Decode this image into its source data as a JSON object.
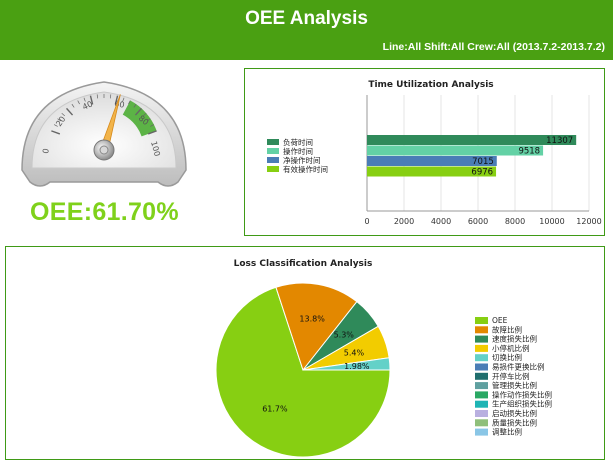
{
  "header": {
    "title": "OEE Analysis",
    "subtitle": "Line:All Shift:All Crew:All (2013.7.2-2013.7.2)"
  },
  "gauge": {
    "value": 61.7,
    "min": 0,
    "max": 100,
    "ticks": [
      "0",
      "20",
      "40",
      "60",
      "80",
      "100"
    ],
    "label": "OEE:61.70%"
  },
  "chart_data": [
    {
      "type": "bar",
      "orientation": "horizontal",
      "title": "Time Utilization Analysis",
      "categories": [
        "负荷时间",
        "操作时间",
        "净操作时间",
        "有效操作时间"
      ],
      "values": [
        11307,
        9518,
        7015,
        6976
      ],
      "colors": [
        "#2f8a5a",
        "#63d1a5",
        "#4a7db6",
        "#87cf12"
      ],
      "xlim": [
        0,
        12000
      ],
      "xticks": [
        "0",
        "2000",
        "4000",
        "6000",
        "8000",
        "10000",
        "12000"
      ],
      "legend": "left",
      "grid": true
    },
    {
      "type": "pie",
      "title": "Loss Classification Analysis",
      "slices": [
        {
          "name": "OEE",
          "value": 61.7,
          "label": "61.7%",
          "color": "#87cf12"
        },
        {
          "name": "故障比例",
          "value": 13.8,
          "label": "13.8%",
          "color": "#e38800"
        },
        {
          "name": "速度损失比例",
          "value": 5.3,
          "label": "5.3%",
          "color": "#2f8a5a"
        },
        {
          "name": "小停机比例",
          "value": 5.4,
          "label": "5.4%",
          "color": "#f2cc00"
        },
        {
          "name": "切换比例",
          "value": 1.98,
          "label": "1.98%",
          "color": "#63d1c8"
        },
        {
          "name": "易损件更换比例",
          "value": 0,
          "label": "",
          "color": "#4a7db6"
        },
        {
          "name": "开停车比例",
          "value": 0,
          "label": "",
          "color": "#1f6e6e"
        },
        {
          "name": "管理损失比例",
          "value": 0,
          "label": "",
          "color": "#5fa0a0"
        },
        {
          "name": "操作动作损失比例",
          "value": 0,
          "label": "",
          "color": "#2aa864"
        },
        {
          "name": "生产组织损失比例",
          "value": 0,
          "label": "",
          "color": "#1fb5b5"
        },
        {
          "name": "启动损失比例",
          "value": 0,
          "label": "",
          "color": "#b9b0e0"
        },
        {
          "name": "质量损失比例",
          "value": 0,
          "label": "",
          "color": "#8fbf7a"
        },
        {
          "name": "调整比例",
          "value": 0,
          "label": "",
          "color": "#8ac6e6"
        }
      ],
      "legend": "right"
    }
  ]
}
